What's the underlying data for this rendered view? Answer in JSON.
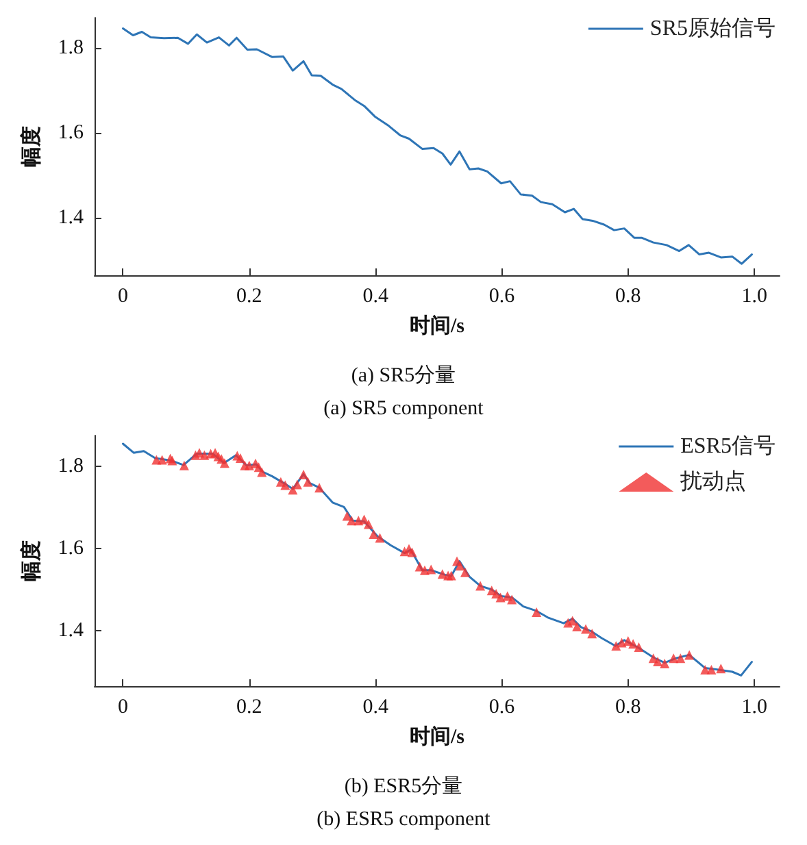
{
  "chart_data": [
    {
      "type": "line",
      "title": "(a) SR5分量",
      "subtitle": "(a) SR5 component",
      "xlabel": "时间/s",
      "ylabel": "幅度",
      "xlim": [
        -0.045,
        1.04
      ],
      "ylim": [
        1.265,
        1.87
      ],
      "xticks": [
        0,
        0.2,
        0.4,
        0.6,
        0.8,
        {
          "value": 1,
          "label": "1.0"
        }
      ],
      "yticks": [
        1.4,
        1.6,
        1.8
      ],
      "grid": false,
      "legend": "top right",
      "marker": "none",
      "line_style": "solid",
      "series": [
        {
          "name": "SR5原始信号",
          "color": "#2e75b6",
          "x": [
            0,
            0.016,
            0.03,
            0.044,
            0.065,
            0.087,
            0.103,
            0.117,
            0.133,
            0.152,
            0.168,
            0.18,
            0.197,
            0.212,
            0.236,
            0.254,
            0.269,
            0.286,
            0.299,
            0.313,
            0.332,
            0.346,
            0.367,
            0.382,
            0.399,
            0.421,
            0.439,
            0.453,
            0.474,
            0.492,
            0.506,
            0.519,
            0.533,
            0.549,
            0.563,
            0.577,
            0.599,
            0.613,
            0.63,
            0.648,
            0.662,
            0.68,
            0.7,
            0.714,
            0.728,
            0.744,
            0.762,
            0.778,
            0.794,
            0.81,
            0.822,
            0.84,
            0.861,
            0.881,
            0.896,
            0.913,
            0.928,
            0.947,
            0.965,
            0.98,
            0.996
          ],
          "values": [
            1.845,
            1.829,
            1.837,
            1.824,
            1.822,
            1.823,
            1.809,
            1.831,
            1.812,
            1.824,
            1.805,
            1.823,
            1.795,
            1.796,
            1.778,
            1.779,
            1.746,
            1.768,
            1.735,
            1.734,
            1.713,
            1.703,
            1.677,
            1.663,
            1.638,
            1.616,
            1.594,
            1.586,
            1.562,
            1.564,
            1.551,
            1.525,
            1.556,
            1.514,
            1.516,
            1.509,
            1.481,
            1.486,
            1.455,
            1.452,
            1.437,
            1.432,
            1.413,
            1.421,
            1.397,
            1.393,
            1.384,
            1.371,
            1.375,
            1.353,
            1.353,
            1.342,
            1.336,
            1.322,
            1.336,
            1.314,
            1.318,
            1.307,
            1.309,
            1.292,
            1.314
          ]
        }
      ]
    },
    {
      "type": "line",
      "title": "(b) ESR5分量",
      "subtitle": "(b) ESR5 component",
      "xlabel": "时间/s",
      "ylabel": "幅度",
      "xlim": [
        -0.045,
        1.04
      ],
      "ylim": [
        1.265,
        1.875
      ],
      "xticks": [
        0,
        0.2,
        0.4,
        0.6,
        0.8,
        {
          "value": 1,
          "label": "1.0"
        }
      ],
      "yticks": [
        1.4,
        1.6,
        1.8
      ],
      "grid": false,
      "legend": "top right",
      "marker": "none",
      "line_style": "solid",
      "series": [
        {
          "name": "ESR5信号",
          "color": "#2e75b6",
          "x": [
            0,
            0.017,
            0.033,
            0.051,
            0.076,
            0.096,
            0.117,
            0.142,
            0.16,
            0.179,
            0.196,
            0.211,
            0.222,
            0.236,
            0.255,
            0.269,
            0.286,
            0.296,
            0.311,
            0.332,
            0.35,
            0.364,
            0.382,
            0.403,
            0.424,
            0.446,
            0.456,
            0.474,
            0.488,
            0.51,
            0.52,
            0.533,
            0.549,
            0.566,
            0.584,
            0.599,
            0.616,
            0.634,
            0.655,
            0.673,
            0.698,
            0.712,
            0.726,
            0.741,
            0.758,
            0.78,
            0.794,
            0.815,
            0.84,
            0.858,
            0.876,
            0.897,
            0.922,
            0.943,
            0.965,
            0.979,
            0.996
          ],
          "values": [
            1.855,
            1.833,
            1.837,
            1.82,
            1.814,
            1.803,
            1.831,
            1.831,
            1.808,
            1.827,
            1.802,
            1.805,
            1.786,
            1.776,
            1.759,
            1.745,
            1.781,
            1.759,
            1.748,
            1.712,
            1.701,
            1.668,
            1.666,
            1.63,
            1.608,
            1.589,
            1.597,
            1.547,
            1.547,
            1.536,
            1.533,
            1.569,
            1.531,
            1.509,
            1.5,
            1.484,
            1.481,
            1.459,
            1.448,
            1.432,
            1.418,
            1.429,
            1.408,
            1.399,
            1.382,
            1.363,
            1.377,
            1.36,
            1.335,
            1.322,
            1.333,
            1.341,
            1.309,
            1.305,
            1.3,
            1.291,
            1.324
          ]
        },
        {
          "name": "扰动点",
          "type": "scatter",
          "marker": "triangle",
          "color": "#f03232",
          "x": [
            0.053,
            0.062,
            0.075,
            0.078,
            0.097,
            0.115,
            0.121,
            0.129,
            0.139,
            0.146,
            0.151,
            0.156,
            0.161,
            0.181,
            0.186,
            0.193,
            0.2,
            0.21,
            0.215,
            0.22,
            0.25,
            0.257,
            0.269,
            0.276,
            0.286,
            0.293,
            0.311,
            0.355,
            0.362,
            0.373,
            0.382,
            0.389,
            0.397,
            0.407,
            0.446,
            0.453,
            0.458,
            0.47,
            0.478,
            0.488,
            0.506,
            0.515,
            0.52,
            0.529,
            0.534,
            0.542,
            0.566,
            0.584,
            0.591,
            0.598,
            0.609,
            0.616,
            0.655,
            0.705,
            0.712,
            0.719,
            0.733,
            0.743,
            0.781,
            0.79,
            0.8,
            0.808,
            0.817,
            0.84,
            0.847,
            0.858,
            0.872,
            0.883,
            0.897,
            0.922,
            0.932,
            0.947
          ],
          "values": [
            1.816,
            1.816,
            1.819,
            1.814,
            1.802,
            1.827,
            1.833,
            1.827,
            1.831,
            1.833,
            1.824,
            1.818,
            1.808,
            1.826,
            1.82,
            1.802,
            1.802,
            1.807,
            1.798,
            1.786,
            1.762,
            1.754,
            1.743,
            1.756,
            1.78,
            1.762,
            1.748,
            1.679,
            1.668,
            1.668,
            1.671,
            1.659,
            1.635,
            1.626,
            1.593,
            1.599,
            1.591,
            1.556,
            1.547,
            1.549,
            1.538,
            1.534,
            1.534,
            1.569,
            1.558,
            1.542,
            1.509,
            1.498,
            1.49,
            1.481,
            1.484,
            1.476,
            1.445,
            1.419,
            1.424,
            1.41,
            1.404,
            1.393,
            1.363,
            1.371,
            1.375,
            1.368,
            1.36,
            1.333,
            1.325,
            1.32,
            1.333,
            1.333,
            1.341,
            1.305,
            1.305,
            1.308
          ]
        }
      ]
    }
  ]
}
